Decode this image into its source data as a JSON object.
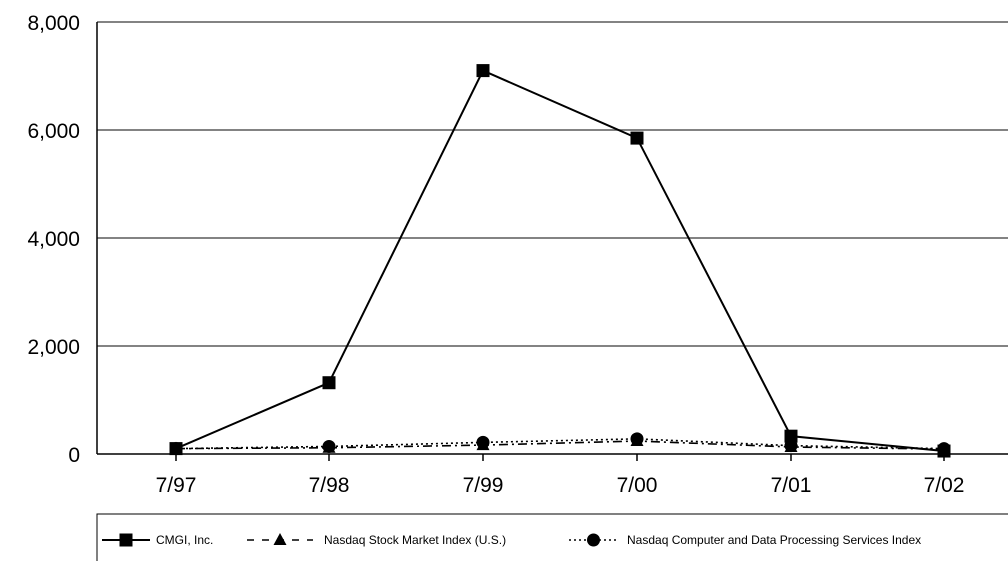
{
  "chart_data": {
    "type": "line",
    "title": "",
    "xlabel": "",
    "ylabel": "",
    "categories": [
      "7/97",
      "7/98",
      "7/99",
      "7/00",
      "7/01",
      "7/02"
    ],
    "ylim": [
      0,
      8000
    ],
    "yticks": [
      "0",
      "2,000",
      "4,000",
      "6,000",
      "8,000"
    ],
    "ytick_values": [
      0,
      2000,
      4000,
      6000,
      8000
    ],
    "grid": true,
    "legend_position": "bottom",
    "series": [
      {
        "name": "CMGI, Inc.",
        "values": [
          100,
          1320,
          7100,
          5850,
          330,
          55
        ],
        "marker": "square",
        "line": "solid"
      },
      {
        "name": "Nasdaq Stock Market Index (U.S.)",
        "values": [
          100,
          115,
          165,
          240,
          130,
          90
        ],
        "marker": "triangle",
        "line": "dash-dot"
      },
      {
        "name": "Nasdaq Computer and Data Processing Services Index",
        "values": [
          100,
          140,
          215,
          280,
          155,
          100
        ],
        "marker": "circle",
        "line": "dotted"
      }
    ],
    "colors": {
      "line": "#000000",
      "grid": "#5a5a5a",
      "background": "#ffffff"
    }
  }
}
